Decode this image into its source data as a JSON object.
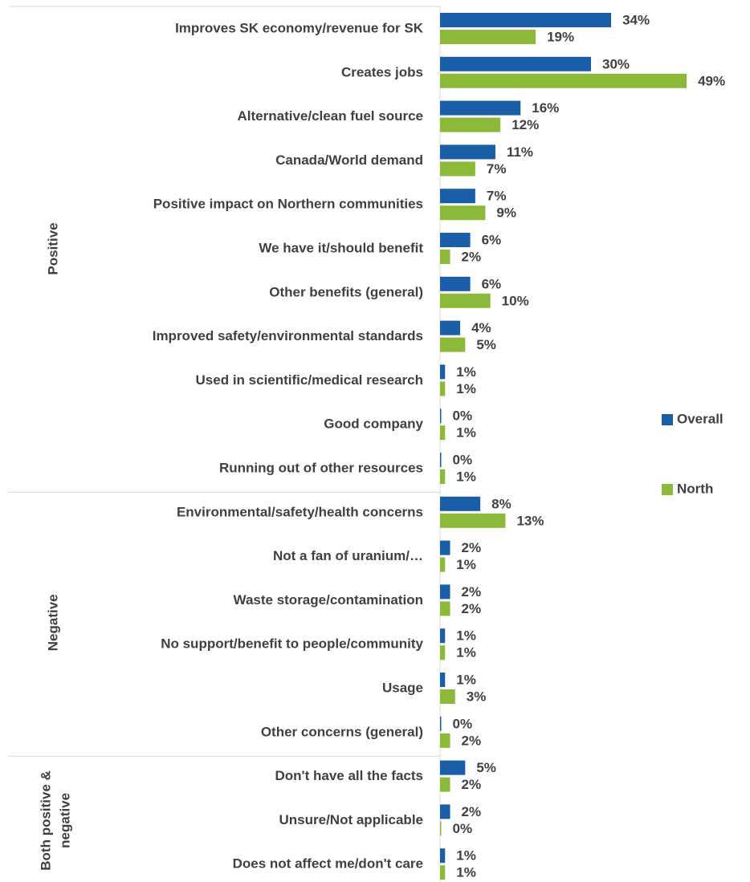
{
  "chart_data": {
    "type": "bar",
    "orientation": "horizontal",
    "categories": [
      "Improves SK economy/revenue for SK",
      "Creates jobs",
      "Alternative/clean fuel source",
      "Canada/World demand",
      "Positive impact on Northern communities",
      "We have it/should benefit",
      "Other benefits (general)",
      "Improved safety/environmental standards",
      "Used in scientific/medical research",
      "Good company",
      "Running out of other resources",
      "Environmental/safety/health concerns",
      "Not a fan of uranium/…",
      "Waste storage/contamination",
      "No support/benefit to people/community",
      "Usage",
      "Other concerns (general)",
      "Don't have all the facts",
      "Unsure/Not applicable",
      "Does not affect me/don't care"
    ],
    "groups": [
      {
        "name": "Positive",
        "start": 0,
        "end": 10
      },
      {
        "name": "Negative",
        "start": 11,
        "end": 16
      },
      {
        "name": "Both positive & negative",
        "lines": [
          "Both positive &",
          "negative"
        ],
        "start": 17,
        "end": 19
      }
    ],
    "series": [
      {
        "name": "Overall",
        "color": "#1a5ea8",
        "values": [
          34,
          30,
          16,
          11,
          7,
          6,
          6,
          4,
          1,
          0,
          0,
          8,
          2,
          2,
          1,
          1,
          0,
          5,
          2,
          1
        ],
        "value_labels": [
          "34%",
          "30%",
          "16%",
          "11%",
          "7%",
          "6%",
          "6%",
          "4%",
          "1%",
          "0%",
          "0%",
          "8%",
          "2%",
          "2%",
          "1%",
          "1%",
          "0%",
          "5%",
          "2%",
          "1%"
        ]
      },
      {
        "name": "North",
        "color": "#8cb93a",
        "values": [
          19,
          49,
          12,
          7,
          9,
          2,
          10,
          5,
          1,
          1,
          1,
          13,
          1,
          2,
          1,
          3,
          2,
          2,
          0,
          1
        ],
        "value_labels": [
          "19%",
          "49%",
          "12%",
          "7%",
          "9%",
          "2%",
          "10%",
          "5%",
          "1%",
          "1%",
          "1%",
          "13%",
          "1%",
          "2%",
          "1%",
          "3%",
          "2%",
          "2%",
          "0%",
          "1%"
        ]
      }
    ],
    "xlim": [
      0,
      60
    ],
    "legend": "right"
  }
}
